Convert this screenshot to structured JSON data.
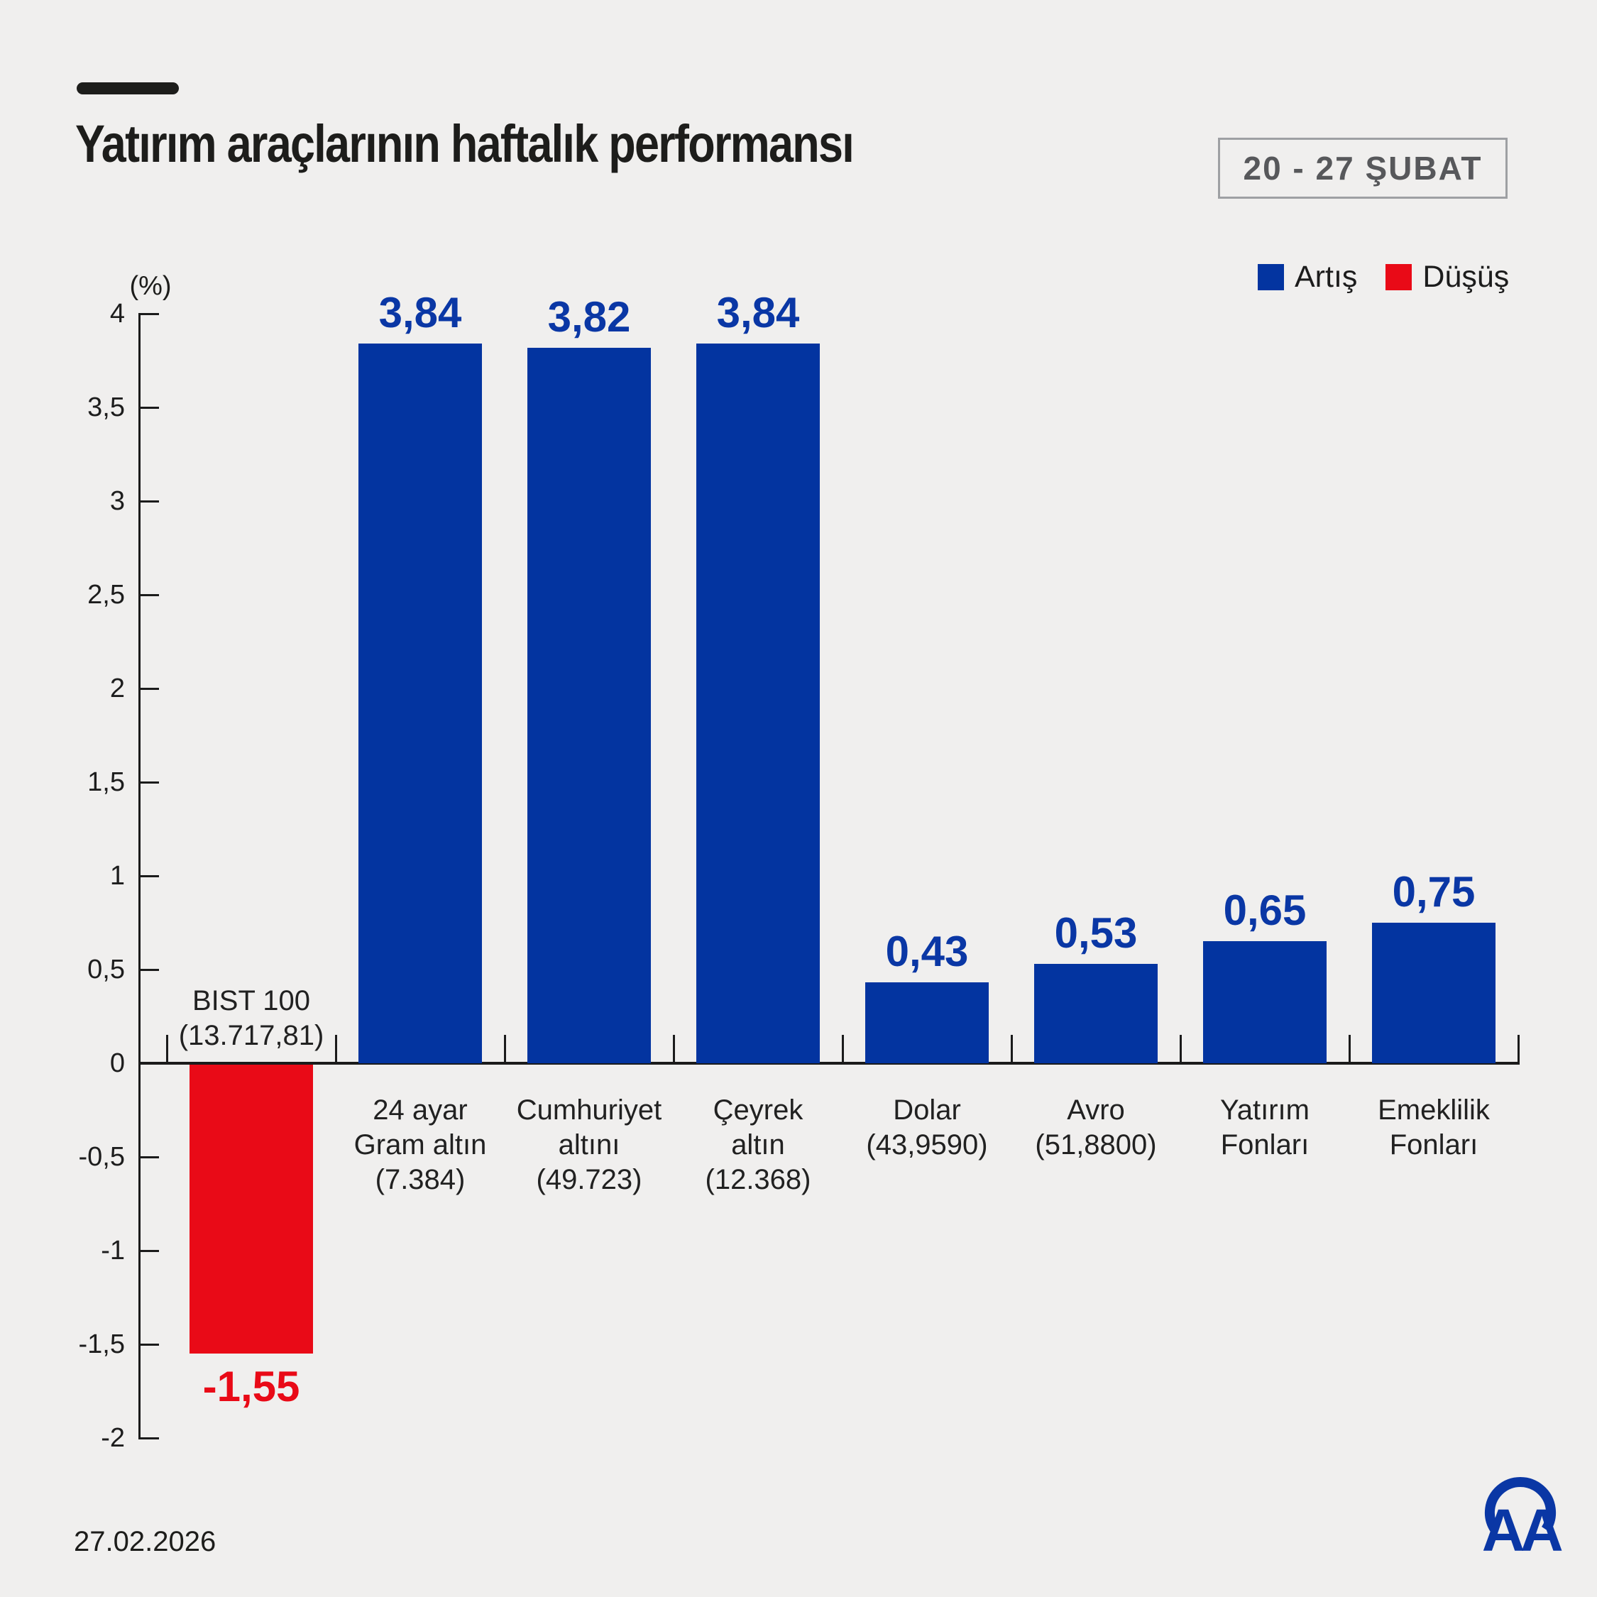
{
  "header": {
    "title": "Yatırım araçlarının haftalık performansı",
    "date_range": "20 - 27 ŞUBAT"
  },
  "legend": {
    "increase_label": "Artış",
    "decrease_label": "Düşüş"
  },
  "colors": {
    "increase": "#0334a0",
    "decrease": "#e90a17",
    "value_text_increase": "#0a37a5",
    "value_text_decrease": "#e90a17",
    "background": "#f0efee",
    "axis": "#1b1b1b"
  },
  "chart_data": {
    "type": "bar",
    "title": "Yatırım araçlarının haftalık performansı",
    "ylabel": "(%)",
    "ylim": [
      -2,
      4
    ],
    "ytick_step": 0.5,
    "grid": false,
    "legend_position": "top-right",
    "yticks": [
      {
        "v": 4,
        "label": "4"
      },
      {
        "v": 3.5,
        "label": "3,5"
      },
      {
        "v": 3,
        "label": "3"
      },
      {
        "v": 2.5,
        "label": "2,5"
      },
      {
        "v": 2,
        "label": "2"
      },
      {
        "v": 1.5,
        "label": "1,5"
      },
      {
        "v": 1,
        "label": "1"
      },
      {
        "v": 0.5,
        "label": "0,5"
      },
      {
        "v": 0,
        "label": "0"
      },
      {
        "v": -0.5,
        "label": "-0,5"
      },
      {
        "v": -1,
        "label": "-1"
      },
      {
        "v": -1.5,
        "label": "-1,5"
      },
      {
        "v": -2,
        "label": "-2"
      }
    ],
    "bars": [
      {
        "category_lines": [
          "BIST 100",
          "(13.717,81)"
        ],
        "value": -1.55,
        "value_label": "-1,55",
        "direction": "decrease"
      },
      {
        "category_lines": [
          "24 ayar",
          "Gram altın",
          "(7.384)"
        ],
        "value": 3.84,
        "value_label": "3,84",
        "direction": "increase"
      },
      {
        "category_lines": [
          "Cumhuriyet",
          "altını",
          "(49.723)"
        ],
        "value": 3.82,
        "value_label": "3,82",
        "direction": "increase"
      },
      {
        "category_lines": [
          "Çeyrek",
          "altın",
          "(12.368)"
        ],
        "value": 3.84,
        "value_label": "3,84",
        "direction": "increase"
      },
      {
        "category_lines": [
          "Dolar",
          "(43,9590)"
        ],
        "value": 0.43,
        "value_label": "0,43",
        "direction": "increase"
      },
      {
        "category_lines": [
          "Avro",
          "(51,8800)"
        ],
        "value": 0.53,
        "value_label": "0,53",
        "direction": "increase"
      },
      {
        "category_lines": [
          "Yatırım",
          "Fonları"
        ],
        "value": 0.65,
        "value_label": "0,65",
        "direction": "increase"
      },
      {
        "category_lines": [
          "Emeklilik",
          "Fonları"
        ],
        "value": 0.75,
        "value_label": "0,75",
        "direction": "increase"
      }
    ]
  },
  "footer": {
    "date": "27.02.2026",
    "logo_text": "AA"
  }
}
